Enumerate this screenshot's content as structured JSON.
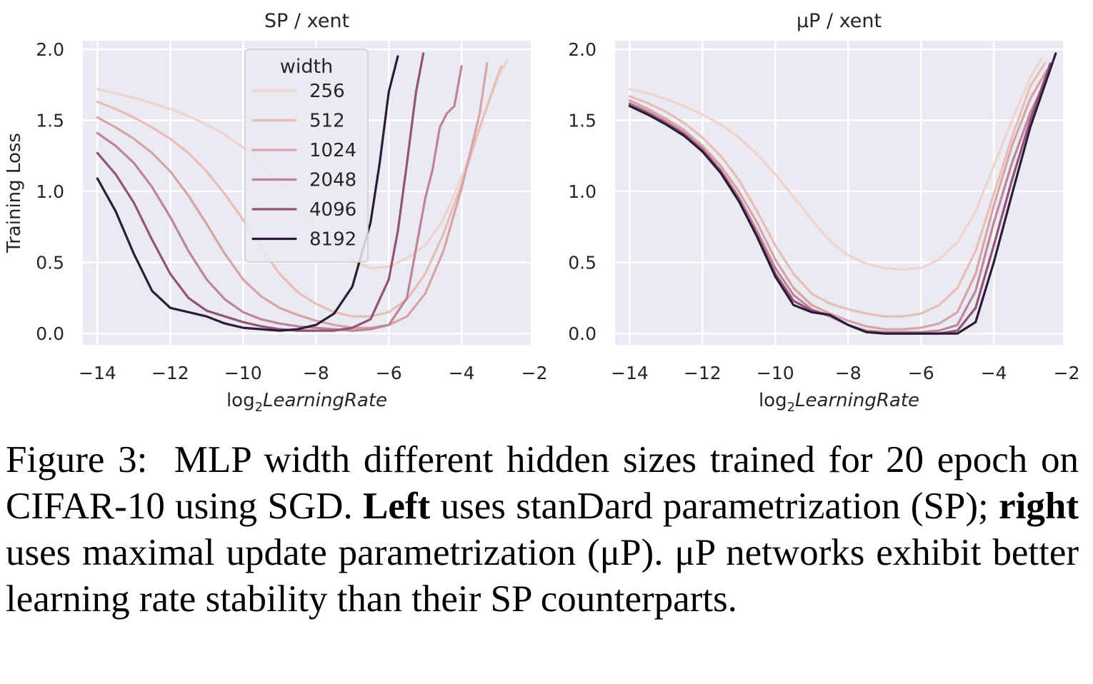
{
  "caption": {
    "label": "Figure 3:",
    "text_1": "MLP width different hidden sizes trained for 20 epoch on CIFAR-10 using SGD.",
    "bold_left": "Left",
    "text_2": "uses stan­Dard parametrization (SP);",
    "bold_right": "right",
    "text_3": "uses maximal update parametrization (μP). μP networks exhibit better learning rate stability than their SP counterparts."
  },
  "chart_data": [
    {
      "type": "line",
      "title": "SP / xent",
      "ylabel": "Training Loss",
      "xlabel_prefix": "log",
      "xlabel_sub": "2",
      "xlabel_main": "LearningRate",
      "xlim": [
        -14.4,
        -2.1
      ],
      "ylim": [
        -0.08,
        2.06
      ],
      "xticks": [
        -14,
        -12,
        -10,
        -8,
        -6,
        -4,
        -2
      ],
      "yticks": [
        0.0,
        0.5,
        1.0,
        1.5,
        2.0
      ],
      "xtick_labels": [
        "−14",
        "−12",
        "−10",
        "−8",
        "−6",
        "−4",
        "−2"
      ],
      "ytick_labels": [
        "0.0",
        "0.5",
        "1.0",
        "1.5",
        "2.0"
      ],
      "grid": true,
      "legend": {
        "title": "width",
        "placement": "upper-center"
      },
      "series": [
        {
          "name": "256",
          "color": "#f0d3cc",
          "x": [
            -14,
            -13.5,
            -13,
            -12.5,
            -12,
            -11.5,
            -11,
            -10.5,
            -10,
            -9.5,
            -9,
            -8.5,
            -8,
            -7.5,
            -7,
            -6.5,
            -6,
            -5.5,
            -5,
            -4.5,
            -4,
            -3.5,
            -3,
            -2.75
          ],
          "y": [
            1.72,
            1.69,
            1.66,
            1.62,
            1.58,
            1.53,
            1.47,
            1.4,
            1.31,
            1.2,
            1.07,
            0.92,
            0.76,
            0.62,
            0.51,
            0.46,
            0.47,
            0.53,
            0.62,
            0.8,
            1.1,
            1.45,
            1.8,
            1.92
          ]
        },
        {
          "name": "512",
          "color": "#e8bdb6",
          "x": [
            -14,
            -13.5,
            -13,
            -12.5,
            -12,
            -11.5,
            -11,
            -10.5,
            -10,
            -9.5,
            -9,
            -8.5,
            -8,
            -7.5,
            -7,
            -6.5,
            -6,
            -5.5,
            -5,
            -4.5,
            -4,
            -3.5,
            -3,
            -2.9
          ],
          "y": [
            1.63,
            1.58,
            1.52,
            1.45,
            1.37,
            1.27,
            1.14,
            0.98,
            0.8,
            0.6,
            0.42,
            0.29,
            0.21,
            0.15,
            0.12,
            0.12,
            0.15,
            0.24,
            0.42,
            0.7,
            1.05,
            1.45,
            1.82,
            1.88
          ]
        },
        {
          "name": "1024",
          "color": "#d8a3a4",
          "x": [
            -14,
            -13.5,
            -13,
            -12.5,
            -12,
            -11.5,
            -11,
            -10.5,
            -10,
            -9.5,
            -9,
            -8.5,
            -8,
            -7.5,
            -7,
            -6.5,
            -6,
            -5.5,
            -5,
            -4.5,
            -4,
            -3.5,
            -3.3
          ],
          "y": [
            1.52,
            1.45,
            1.37,
            1.27,
            1.14,
            0.97,
            0.77,
            0.56,
            0.38,
            0.26,
            0.18,
            0.13,
            0.09,
            0.06,
            0.04,
            0.04,
            0.06,
            0.12,
            0.28,
            0.58,
            1.02,
            1.55,
            1.9
          ]
        },
        {
          "name": "2048",
          "color": "#bf8497",
          "x": [
            -14,
            -13.5,
            -13,
            -12.5,
            -12,
            -11.5,
            -11,
            -10.5,
            -10,
            -9.5,
            -9,
            -8.5,
            -8,
            -7.5,
            -7,
            -6.5,
            -6,
            -5.5,
            -5,
            -4.8,
            -4.6,
            -4.4,
            -4.2,
            -4.0
          ],
          "y": [
            1.41,
            1.32,
            1.2,
            1.03,
            0.82,
            0.58,
            0.38,
            0.24,
            0.15,
            0.1,
            0.07,
            0.05,
            0.04,
            0.03,
            0.02,
            0.03,
            0.06,
            0.25,
            0.95,
            1.15,
            1.45,
            1.55,
            1.6,
            1.88
          ]
        },
        {
          "name": "4096",
          "color": "#955278",
          "x": [
            -14,
            -13.5,
            -13,
            -12.5,
            -12,
            -11.5,
            -11,
            -10.5,
            -10,
            -9.5,
            -9,
            -8.5,
            -8,
            -7.5,
            -7,
            -6.5,
            -6,
            -5.75,
            -5.5,
            -5.25,
            -5.05
          ],
          "y": [
            1.27,
            1.12,
            0.92,
            0.66,
            0.42,
            0.25,
            0.16,
            0.12,
            0.08,
            0.05,
            0.03,
            0.02,
            0.02,
            0.02,
            0.04,
            0.1,
            0.38,
            0.72,
            1.2,
            1.7,
            1.97
          ]
        },
        {
          "name": "8192",
          "color": "#2b1c3a",
          "x": [
            -14,
            -13.5,
            -13,
            -12.5,
            -12,
            -11.5,
            -11,
            -10.5,
            -10,
            -9.5,
            -9,
            -8.5,
            -8,
            -7.5,
            -7,
            -6.5,
            -6.25,
            -6.0,
            -5.75
          ],
          "y": [
            1.09,
            0.86,
            0.56,
            0.3,
            0.18,
            0.15,
            0.12,
            0.07,
            0.04,
            0.03,
            0.02,
            0.03,
            0.06,
            0.14,
            0.33,
            0.78,
            1.2,
            1.7,
            1.95
          ]
        }
      ]
    },
    {
      "type": "line",
      "title": "μP / xent",
      "ylabel": "",
      "xlabel_prefix": "log",
      "xlabel_sub": "2",
      "xlabel_main": "LearningRate",
      "xlim": [
        -14.4,
        -2.1
      ],
      "ylim": [
        -0.08,
        2.06
      ],
      "xticks": [
        -14,
        -12,
        -10,
        -8,
        -6,
        -4,
        -2
      ],
      "yticks": [
        0.0,
        0.5,
        1.0,
        1.5,
        2.0
      ],
      "xtick_labels": [
        "−14",
        "−12",
        "−10",
        "−8",
        "−6",
        "−4",
        "−2"
      ],
      "ytick_labels": [
        "0.0",
        "0.5",
        "1.0",
        "1.5",
        "2.0"
      ],
      "grid": true,
      "series": [
        {
          "name": "256",
          "color": "#f0d3cc",
          "x": [
            -14,
            -13.5,
            -13,
            -12.5,
            -12,
            -11.5,
            -11,
            -10.5,
            -10,
            -9.5,
            -9,
            -8.5,
            -8,
            -7.5,
            -7,
            -6.5,
            -6,
            -5.5,
            -5,
            -4.5,
            -4,
            -3.5,
            -3,
            -2.7
          ],
          "y": [
            1.72,
            1.69,
            1.65,
            1.6,
            1.54,
            1.47,
            1.38,
            1.26,
            1.12,
            0.96,
            0.8,
            0.65,
            0.55,
            0.49,
            0.46,
            0.45,
            0.46,
            0.52,
            0.64,
            0.86,
            1.18,
            1.5,
            1.8,
            1.93
          ]
        },
        {
          "name": "512",
          "color": "#e8bdb6",
          "x": [
            -14,
            -13.5,
            -13,
            -12.5,
            -12,
            -11.5,
            -11,
            -10.5,
            -10,
            -9.5,
            -9,
            -8.5,
            -8,
            -7.5,
            -7,
            -6.5,
            -6,
            -5.5,
            -5,
            -4.5,
            -4,
            -3.5,
            -3,
            -2.6
          ],
          "y": [
            1.67,
            1.62,
            1.56,
            1.48,
            1.38,
            1.25,
            1.08,
            0.86,
            0.62,
            0.42,
            0.28,
            0.21,
            0.17,
            0.14,
            0.12,
            0.12,
            0.14,
            0.2,
            0.32,
            0.58,
            0.98,
            1.38,
            1.74,
            1.9
          ]
        },
        {
          "name": "1024",
          "color": "#d8a3a4",
          "x": [
            -14,
            -13.5,
            -13,
            -12.5,
            -12,
            -11.5,
            -11,
            -10.5,
            -10,
            -9.5,
            -9,
            -8.5,
            -8,
            -7.5,
            -7,
            -6.5,
            -6,
            -5.5,
            -5,
            -4.5,
            -4,
            -3.5,
            -3,
            -2.55
          ],
          "y": [
            1.64,
            1.58,
            1.51,
            1.43,
            1.32,
            1.18,
            1.0,
            0.78,
            0.52,
            0.32,
            0.2,
            0.14,
            0.09,
            0.05,
            0.03,
            0.03,
            0.04,
            0.07,
            0.15,
            0.42,
            0.9,
            1.32,
            1.65,
            1.85
          ]
        },
        {
          "name": "2048",
          "color": "#bf8497",
          "x": [
            -14,
            -13.5,
            -13,
            -12.5,
            -12,
            -11.5,
            -11,
            -10.5,
            -10,
            -9.5,
            -9,
            -8.5,
            -8,
            -7.5,
            -7,
            -6.5,
            -6,
            -5.5,
            -5,
            -4.5,
            -4,
            -3.5,
            -3,
            -2.5
          ],
          "y": [
            1.62,
            1.56,
            1.49,
            1.41,
            1.3,
            1.15,
            0.96,
            0.72,
            0.46,
            0.27,
            0.17,
            0.12,
            0.06,
            0.02,
            0.01,
            0.01,
            0.01,
            0.02,
            0.06,
            0.3,
            0.78,
            1.2,
            1.55,
            1.82
          ]
        },
        {
          "name": "4096",
          "color": "#955278",
          "x": [
            -14,
            -13.5,
            -13,
            -12.5,
            -12,
            -11.5,
            -11,
            -10.5,
            -10,
            -9.5,
            -9,
            -8.5,
            -8,
            -7.5,
            -7,
            -6.5,
            -6,
            -5.5,
            -5,
            -4.5,
            -4,
            -3.5,
            -3,
            -2.45
          ],
          "y": [
            1.61,
            1.55,
            1.48,
            1.4,
            1.29,
            1.14,
            0.94,
            0.69,
            0.42,
            0.23,
            0.16,
            0.13,
            0.06,
            0.01,
            0.0,
            0.0,
            0.0,
            0.0,
            0.02,
            0.18,
            0.62,
            1.08,
            1.5,
            1.9
          ]
        },
        {
          "name": "8192",
          "color": "#2b1c3a",
          "x": [
            -14,
            -13.5,
            -13,
            -12.5,
            -12,
            -11.5,
            -11,
            -10.5,
            -10,
            -9.5,
            -9,
            -8.5,
            -8,
            -7.5,
            -7,
            -6.5,
            -6,
            -5.5,
            -5,
            -4.5,
            -4,
            -3.5,
            -3,
            -2.3
          ],
          "y": [
            1.6,
            1.54,
            1.47,
            1.39,
            1.28,
            1.13,
            0.93,
            0.68,
            0.4,
            0.2,
            0.15,
            0.13,
            0.06,
            0.01,
            0.0,
            0.0,
            0.0,
            0.0,
            0.0,
            0.08,
            0.5,
            0.98,
            1.45,
            1.97
          ]
        }
      ]
    }
  ]
}
